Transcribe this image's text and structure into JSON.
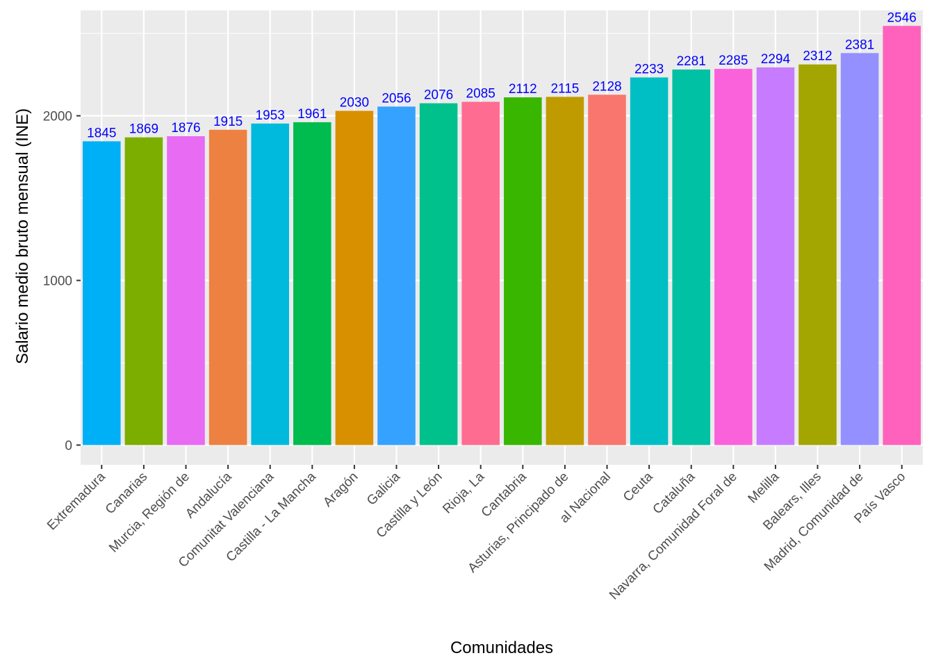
{
  "chart_data": {
    "type": "bar",
    "title": "",
    "xlabel": "Comunidades",
    "ylabel": "Salario medio bruto mensual (INE)",
    "ylim": [
      -120,
      2640
    ],
    "yticks": [
      0,
      1000,
      2000
    ],
    "grid": true,
    "legend": "none",
    "label_color": "#0000ff",
    "categories": [
      "Extremadura",
      "Canarias",
      "Murcia, Región de",
      "Andalucía",
      "Comunitat Valenciana",
      "Castilla - La Mancha",
      "Aragón",
      "Galicia",
      "Castilla y León",
      "Rioja, La",
      "Cantabria",
      "Asturias, Principado de",
      "al Nacional",
      "Ceuta",
      "Cataluña",
      "Navarra, Comunidad Foral de",
      "Melilla",
      "Balears, Illes",
      "Madrid, Comunidad de",
      "País Vasco"
    ],
    "values": [
      1845,
      1869,
      1876,
      1915,
      1953,
      1961,
      2030,
      2056,
      2076,
      2085,
      2112,
      2115,
      2128,
      2233,
      2281,
      2285,
      2294,
      2312,
      2381,
      2546
    ],
    "colors": [
      "#00b0f6",
      "#7cae00",
      "#e76bf3",
      "#ed8141",
      "#00bade",
      "#00bb4e",
      "#d89000",
      "#35a2ff",
      "#00c08b",
      "#ff6c91",
      "#39b600",
      "#bf9b00",
      "#f8766d",
      "#00bfc4",
      "#00c1a3",
      "#fa62db",
      "#c77cff",
      "#a3a500",
      "#9590ff",
      "#ff62bc"
    ]
  }
}
